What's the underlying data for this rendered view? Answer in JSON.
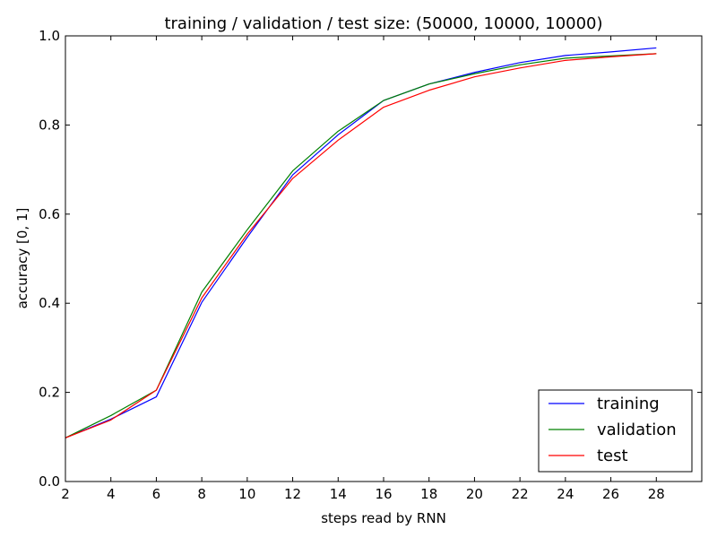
{
  "chart_data": {
    "type": "line",
    "title": "training / validation / test size: (50000, 10000, 10000)",
    "xlabel": "steps read by RNN",
    "ylabel": "accuracy [0, 1]",
    "xlim": [
      2,
      30
    ],
    "ylim": [
      0.0,
      1.0
    ],
    "xticks": [
      2,
      4,
      6,
      8,
      10,
      12,
      14,
      16,
      18,
      20,
      22,
      24,
      26,
      28
    ],
    "yticks": [
      0.0,
      0.2,
      0.4,
      0.6,
      0.8,
      1.0
    ],
    "xtick_labels": [
      "2",
      "4",
      "6",
      "8",
      "10",
      "12",
      "14",
      "16",
      "18",
      "20",
      "22",
      "24",
      "26",
      "28"
    ],
    "ytick_labels": [
      "0.0",
      "0.2",
      "0.4",
      "0.6",
      "0.8",
      "1.0"
    ],
    "grid": false,
    "legend_position": "lower-right",
    "x": [
      2,
      4,
      6,
      8,
      10,
      12,
      14,
      16,
      18,
      20,
      22,
      24,
      26,
      28
    ],
    "series": [
      {
        "name": "training",
        "color": "#0000ff",
        "values": [
          0.098,
          0.14,
          0.19,
          0.402,
          0.548,
          0.688,
          0.778,
          0.855,
          0.892,
          0.918,
          0.94,
          0.956,
          0.964,
          0.973
        ]
      },
      {
        "name": "validation",
        "color": "#008000",
        "values": [
          0.098,
          0.148,
          0.205,
          0.425,
          0.565,
          0.697,
          0.786,
          0.855,
          0.892,
          0.915,
          0.935,
          0.95,
          0.955,
          0.96
        ]
      },
      {
        "name": "test",
        "color": "#ff0000",
        "values": [
          0.098,
          0.138,
          0.205,
          0.412,
          0.555,
          0.68,
          0.766,
          0.84,
          0.878,
          0.908,
          0.928,
          0.945,
          0.953,
          0.96
        ]
      }
    ]
  }
}
